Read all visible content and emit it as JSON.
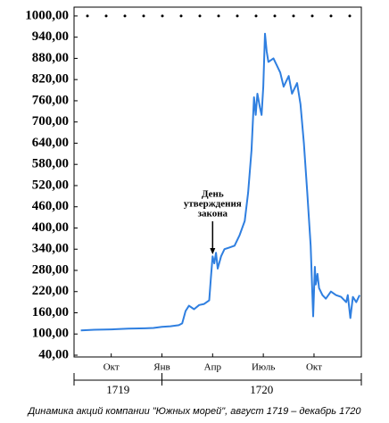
{
  "chart_data": {
    "type": "line",
    "caption": "Динамика акций компании \"Южных морей\", август 1719 – декабрь 1720",
    "ylim": [
      35,
      1025
    ],
    "yticks": [
      {
        "value": 40,
        "label": "40,00"
      },
      {
        "value": 100,
        "label": "100,00"
      },
      {
        "value": 160,
        "label": "160,00"
      },
      {
        "value": 220,
        "label": "220,00"
      },
      {
        "value": 280,
        "label": "280,00"
      },
      {
        "value": 340,
        "label": "340,00"
      },
      {
        "value": 400,
        "label": "400,00"
      },
      {
        "value": 460,
        "label": "460,00"
      },
      {
        "value": 520,
        "label": "520,00"
      },
      {
        "value": 580,
        "label": "580,00"
      },
      {
        "value": 640,
        "label": "640,00"
      },
      {
        "value": 700,
        "label": "700,00"
      },
      {
        "value": 760,
        "label": "760,00"
      },
      {
        "value": 820,
        "label": "820,00"
      },
      {
        "value": 880,
        "label": "880,00"
      },
      {
        "value": 940,
        "label": "940,00"
      },
      {
        "value": 1000,
        "label": "1000,00"
      }
    ],
    "xlim": [
      -0.2,
      16.8
    ],
    "xticks": [
      {
        "value": 2,
        "label": "Окт"
      },
      {
        "value": 5,
        "label": "Янв"
      },
      {
        "value": 8,
        "label": "Апр"
      },
      {
        "value": 11,
        "label": "Июль"
      },
      {
        "value": 14,
        "label": "Окт"
      }
    ],
    "years": [
      {
        "label": "1719",
        "from": -0.2,
        "to": 5
      },
      {
        "label": "1720",
        "from": 5,
        "to": 16.8
      }
    ],
    "annotation": {
      "lines": [
        "День",
        "утверждения",
        "закона"
      ],
      "x": 8.0,
      "y": 318
    },
    "series": [
      {
        "color": "#2f7fe0",
        "x": [
          0.2,
          1,
          2,
          3,
          4,
          4.5,
          5,
          5.5,
          6,
          6.2,
          6.4,
          6.6,
          6.9,
          7.2,
          7.5,
          7.8,
          7.9,
          8.0,
          8.1,
          8.2,
          8.3,
          8.5,
          8.7,
          9.0,
          9.3,
          9.6,
          9.9,
          10.1,
          10.3,
          10.45,
          10.55,
          10.65,
          10.8,
          10.9,
          11.0,
          11.1,
          11.2,
          11.3,
          11.6,
          11.8,
          12.0,
          12.2,
          12.5,
          12.7,
          13.0,
          13.2,
          13.4,
          13.6,
          13.8,
          13.95,
          14.05,
          14.1,
          14.2,
          14.3,
          14.5,
          14.7,
          15.0,
          15.3,
          15.6,
          15.9,
          16.0,
          16.15,
          16.3,
          16.5,
          16.7
        ],
        "values": [
          110,
          112,
          113,
          115,
          116,
          117,
          120,
          122,
          125,
          130,
          165,
          180,
          170,
          182,
          185,
          195,
          260,
          320,
          300,
          330,
          285,
          320,
          340,
          345,
          350,
          380,
          420,
          500,
          620,
          770,
          720,
          780,
          740,
          720,
          800,
          950,
          900,
          870,
          880,
          860,
          840,
          800,
          830,
          780,
          810,
          750,
          640,
          500,
          350,
          150,
          290,
          240,
          270,
          230,
          210,
          200,
          220,
          210,
          205,
          190,
          210,
          145,
          205,
          190,
          210
        ]
      }
    ]
  }
}
